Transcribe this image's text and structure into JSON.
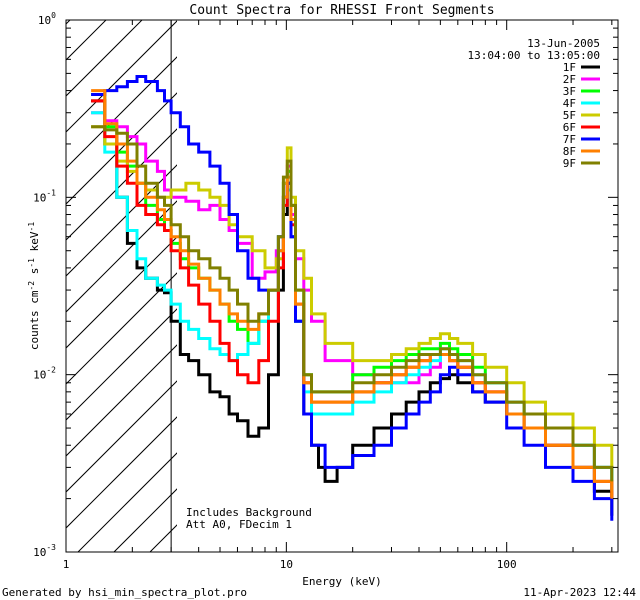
{
  "chart_data": {
    "type": "line",
    "title": "Count Spectra for RHESSI Front Segments",
    "xlabel": "Energy (keV)",
    "ylabel": "counts cm^-2 s^-1 keV^-1",
    "xscale": "log",
    "yscale": "log",
    "xlim": [
      1.0,
      320.0
    ],
    "ylim": [
      0.001,
      1.0
    ],
    "x_ticks": [
      "1",
      "10",
      "100"
    ],
    "y_ticks": [
      "10",
      "10",
      "10",
      "10"
    ],
    "y_tick_exponents": [
      "-3",
      "-2",
      "-1",
      "0"
    ],
    "date_label": "13-Jun-2005",
    "time_label": "13:04:00 to 13:05:00",
    "annotations": [
      "Includes Background",
      "Att A0, FDecim 1"
    ],
    "footer_left": "Generated by hsi_min_spectra_plot.pro",
    "footer_right": "11-Apr-2023 12:44",
    "shaded_region_end": 3.0,
    "series": [
      {
        "name": "1F",
        "color": "#000000",
        "x": [
          1.3,
          1.5,
          1.7,
          1.9,
          2.1,
          2.3,
          2.6,
          2.8,
          3.0,
          3.3,
          3.6,
          4.0,
          4.5,
          5.0,
          5.5,
          6.0,
          6.7,
          7.5,
          8.3,
          9.2,
          9.7,
          10.1,
          10.5,
          11.0,
          12.0,
          13.0,
          14.0,
          15.0,
          17.0,
          20.0,
          25.0,
          30.0,
          35.0,
          40.0,
          45.0,
          50.0,
          55.0,
          60.0,
          70.0,
          80.0,
          100.0,
          120.0,
          150.0,
          200.0,
          250.0,
          300.0
        ],
        "y": [
          0.35,
          0.2,
          0.1,
          0.055,
          0.04,
          0.035,
          0.03,
          0.029,
          0.02,
          0.013,
          0.012,
          0.01,
          0.008,
          0.0075,
          0.006,
          0.0055,
          0.0045,
          0.005,
          0.01,
          0.03,
          0.08,
          0.12,
          0.06,
          0.02,
          0.006,
          0.004,
          0.003,
          0.0025,
          0.003,
          0.004,
          0.005,
          0.006,
          0.007,
          0.008,
          0.009,
          0.0095,
          0.01,
          0.009,
          0.008,
          0.007,
          0.006,
          0.005,
          0.004,
          0.003,
          0.0022,
          0.0016
        ]
      },
      {
        "name": "2F",
        "color": "#ff00ff",
        "x": [
          1.3,
          1.5,
          1.7,
          1.9,
          2.1,
          2.3,
          2.6,
          2.8,
          3.0,
          3.5,
          4.0,
          4.5,
          5.0,
          5.5,
          6.0,
          7.0,
          8.0,
          9.0,
          9.7,
          10.1,
          10.5,
          11.0,
          12.0,
          13.0,
          15.0,
          20.0,
          25.0,
          30.0,
          35.0,
          40.0,
          45.0,
          50.0,
          55.0,
          60.0,
          70.0,
          80.0,
          100.0,
          120.0,
          150.0,
          200.0,
          250.0,
          300.0
        ],
        "y": [
          0.3,
          0.27,
          0.25,
          0.22,
          0.2,
          0.16,
          0.14,
          0.11,
          0.1,
          0.095,
          0.085,
          0.09,
          0.075,
          0.065,
          0.055,
          0.035,
          0.038,
          0.05,
          0.1,
          0.15,
          0.08,
          0.045,
          0.03,
          0.02,
          0.012,
          0.01,
          0.009,
          0.009,
          0.009,
          0.01,
          0.011,
          0.013,
          0.012,
          0.011,
          0.009,
          0.008,
          0.007,
          0.006,
          0.005,
          0.004,
          0.003,
          0.0022
        ]
      },
      {
        "name": "3F",
        "color": "#00ff00",
        "x": [
          1.3,
          1.5,
          1.7,
          1.9,
          2.1,
          2.3,
          2.6,
          2.8,
          3.0,
          3.3,
          3.6,
          4.0,
          4.5,
          5.0,
          5.5,
          6.0,
          6.7,
          7.5,
          8.3,
          9.2,
          9.7,
          10.1,
          10.5,
          11.0,
          12.0,
          13.0,
          15.0,
          20.0,
          25.0,
          30.0,
          35.0,
          40.0,
          45.0,
          50.0,
          55.0,
          60.0,
          70.0,
          80.0,
          100.0,
          120.0,
          150.0,
          200.0,
          250.0,
          300.0
        ],
        "y": [
          0.38,
          0.25,
          0.18,
          0.15,
          0.12,
          0.09,
          0.075,
          0.065,
          0.055,
          0.045,
          0.04,
          0.035,
          0.03,
          0.025,
          0.02,
          0.018,
          0.015,
          0.02,
          0.03,
          0.06,
          0.12,
          0.14,
          0.09,
          0.03,
          0.01,
          0.008,
          0.008,
          0.01,
          0.011,
          0.012,
          0.013,
          0.014,
          0.014,
          0.015,
          0.014,
          0.013,
          0.011,
          0.009,
          0.007,
          0.006,
          0.005,
          0.004,
          0.003,
          0.0022
        ]
      },
      {
        "name": "4F",
        "color": "#00ffff",
        "x": [
          1.3,
          1.5,
          1.7,
          1.9,
          2.1,
          2.3,
          2.6,
          2.8,
          3.0,
          3.3,
          3.6,
          4.0,
          4.5,
          5.0,
          5.5,
          6.0,
          6.7,
          7.5,
          8.3,
          9.2,
          9.7,
          10.1,
          10.5,
          11.0,
          12.0,
          13.0,
          15.0,
          20.0,
          25.0,
          30.0,
          35.0,
          40.0,
          45.0,
          50.0,
          55.0,
          60.0,
          70.0,
          80.0,
          100.0,
          120.0,
          150.0,
          200.0,
          250.0,
          300.0
        ],
        "y": [
          0.3,
          0.18,
          0.1,
          0.065,
          0.045,
          0.035,
          0.032,
          0.03,
          0.025,
          0.02,
          0.018,
          0.016,
          0.014,
          0.013,
          0.012,
          0.013,
          0.015,
          0.02,
          0.03,
          0.05,
          0.09,
          0.11,
          0.06,
          0.02,
          0.008,
          0.006,
          0.006,
          0.007,
          0.008,
          0.009,
          0.01,
          0.011,
          0.012,
          0.014,
          0.013,
          0.012,
          0.01,
          0.009,
          0.007,
          0.006,
          0.005,
          0.004,
          0.003,
          0.0022
        ]
      },
      {
        "name": "5F",
        "color": "#cccc00",
        "x": [
          1.3,
          1.5,
          1.7,
          1.9,
          2.1,
          2.3,
          2.6,
          2.8,
          3.0,
          3.5,
          4.0,
          4.5,
          5.0,
          5.5,
          6.0,
          7.0,
          8.0,
          9.0,
          9.7,
          10.1,
          10.5,
          11.0,
          12.0,
          13.0,
          15.0,
          20.0,
          25.0,
          30.0,
          35.0,
          40.0,
          45.0,
          50.0,
          55.0,
          60.0,
          70.0,
          80.0,
          100.0,
          120.0,
          150.0,
          200.0,
          250.0,
          300.0
        ],
        "y": [
          0.25,
          0.2,
          0.16,
          0.14,
          0.12,
          0.11,
          0.1,
          0.1,
          0.11,
          0.12,
          0.11,
          0.1,
          0.09,
          0.07,
          0.06,
          0.05,
          0.04,
          0.045,
          0.12,
          0.19,
          0.1,
          0.05,
          0.035,
          0.022,
          0.015,
          0.012,
          0.012,
          0.013,
          0.014,
          0.015,
          0.016,
          0.017,
          0.016,
          0.015,
          0.013,
          0.011,
          0.009,
          0.007,
          0.006,
          0.005,
          0.004,
          0.003
        ]
      },
      {
        "name": "6F",
        "color": "#ff0000",
        "x": [
          1.3,
          1.5,
          1.7,
          1.9,
          2.1,
          2.3,
          2.6,
          2.8,
          3.0,
          3.3,
          3.6,
          4.0,
          4.5,
          5.0,
          5.5,
          6.0,
          6.7,
          7.5,
          8.3,
          9.2,
          9.7,
          10.1,
          10.5,
          11.0,
          12.0,
          13.0,
          15.0,
          20.0,
          25.0,
          30.0,
          35.0,
          40.0,
          45.0,
          50.0,
          55.0,
          60.0,
          70.0,
          80.0,
          100.0,
          120.0,
          150.0,
          200.0,
          250.0,
          300.0
        ],
        "y": [
          0.35,
          0.22,
          0.15,
          0.12,
          0.09,
          0.08,
          0.07,
          0.065,
          0.05,
          0.04,
          0.032,
          0.025,
          0.02,
          0.015,
          0.012,
          0.01,
          0.009,
          0.012,
          0.02,
          0.04,
          0.09,
          0.12,
          0.07,
          0.025,
          0.009,
          0.007,
          0.007,
          0.008,
          0.009,
          0.01,
          0.011,
          0.012,
          0.013,
          0.013,
          0.012,
          0.011,
          0.009,
          0.008,
          0.006,
          0.005,
          0.004,
          0.003,
          0.0025,
          0.002
        ]
      },
      {
        "name": "7F",
        "color": "#0000ff",
        "x": [
          1.3,
          1.5,
          1.7,
          1.9,
          2.1,
          2.3,
          2.6,
          2.8,
          3.0,
          3.3,
          3.6,
          4.0,
          4.5,
          5.0,
          5.5,
          6.0,
          6.7,
          7.5,
          8.3,
          9.2,
          9.7,
          10.1,
          10.5,
          11.0,
          12.0,
          13.0,
          15.0,
          20.0,
          25.0,
          30.0,
          35.0,
          40.0,
          45.0,
          50.0,
          55.0,
          60.0,
          70.0,
          80.0,
          100.0,
          120.0,
          150.0,
          200.0,
          250.0,
          300.0
        ],
        "y": [
          0.38,
          0.4,
          0.42,
          0.45,
          0.48,
          0.45,
          0.4,
          0.35,
          0.3,
          0.25,
          0.2,
          0.18,
          0.15,
          0.12,
          0.08,
          0.05,
          0.035,
          0.03,
          0.03,
          0.06,
          0.1,
          0.12,
          0.06,
          0.02,
          0.006,
          0.004,
          0.003,
          0.0035,
          0.004,
          0.005,
          0.006,
          0.007,
          0.008,
          0.01,
          0.011,
          0.01,
          0.008,
          0.007,
          0.005,
          0.004,
          0.003,
          0.0025,
          0.002,
          0.0015
        ]
      },
      {
        "name": "8F",
        "color": "#ff8000",
        "x": [
          1.3,
          1.5,
          1.7,
          1.9,
          2.1,
          2.3,
          2.6,
          2.8,
          3.0,
          3.3,
          3.6,
          4.0,
          4.5,
          5.0,
          5.5,
          6.0,
          6.7,
          7.5,
          8.3,
          9.2,
          9.7,
          10.1,
          10.5,
          11.0,
          12.0,
          13.0,
          15.0,
          20.0,
          25.0,
          30.0,
          35.0,
          40.0,
          45.0,
          50.0,
          55.0,
          60.0,
          70.0,
          80.0,
          100.0,
          120.0,
          150.0,
          200.0,
          250.0,
          300.0
        ],
        "y": [
          0.4,
          0.26,
          0.2,
          0.16,
          0.12,
          0.1,
          0.085,
          0.075,
          0.06,
          0.05,
          0.042,
          0.035,
          0.03,
          0.025,
          0.022,
          0.02,
          0.018,
          0.022,
          0.03,
          0.05,
          0.1,
          0.13,
          0.075,
          0.025,
          0.009,
          0.007,
          0.007,
          0.008,
          0.009,
          0.01,
          0.011,
          0.012,
          0.013,
          0.013,
          0.012,
          0.011,
          0.009,
          0.008,
          0.006,
          0.005,
          0.004,
          0.003,
          0.0025,
          0.002
        ]
      },
      {
        "name": "9F",
        "color": "#808000",
        "x": [
          1.3,
          1.5,
          1.7,
          1.9,
          2.1,
          2.3,
          2.6,
          2.8,
          3.0,
          3.3,
          3.6,
          4.0,
          4.5,
          5.0,
          5.5,
          6.0,
          6.7,
          7.5,
          8.3,
          9.2,
          9.7,
          10.1,
          10.5,
          11.0,
          12.0,
          13.0,
          15.0,
          20.0,
          25.0,
          30.0,
          35.0,
          40.0,
          45.0,
          50.0,
          55.0,
          60.0,
          70.0,
          80.0,
          100.0,
          120.0,
          150.0,
          200.0,
          250.0,
          300.0
        ],
        "y": [
          0.25,
          0.24,
          0.23,
          0.2,
          0.15,
          0.12,
          0.1,
          0.09,
          0.07,
          0.06,
          0.05,
          0.045,
          0.04,
          0.035,
          0.03,
          0.025,
          0.02,
          0.022,
          0.03,
          0.06,
          0.13,
          0.16,
          0.09,
          0.03,
          0.01,
          0.008,
          0.008,
          0.009,
          0.01,
          0.011,
          0.012,
          0.013,
          0.013,
          0.014,
          0.013,
          0.012,
          0.01,
          0.009,
          0.007,
          0.006,
          0.005,
          0.004,
          0.003,
          0.0025
        ]
      }
    ]
  }
}
